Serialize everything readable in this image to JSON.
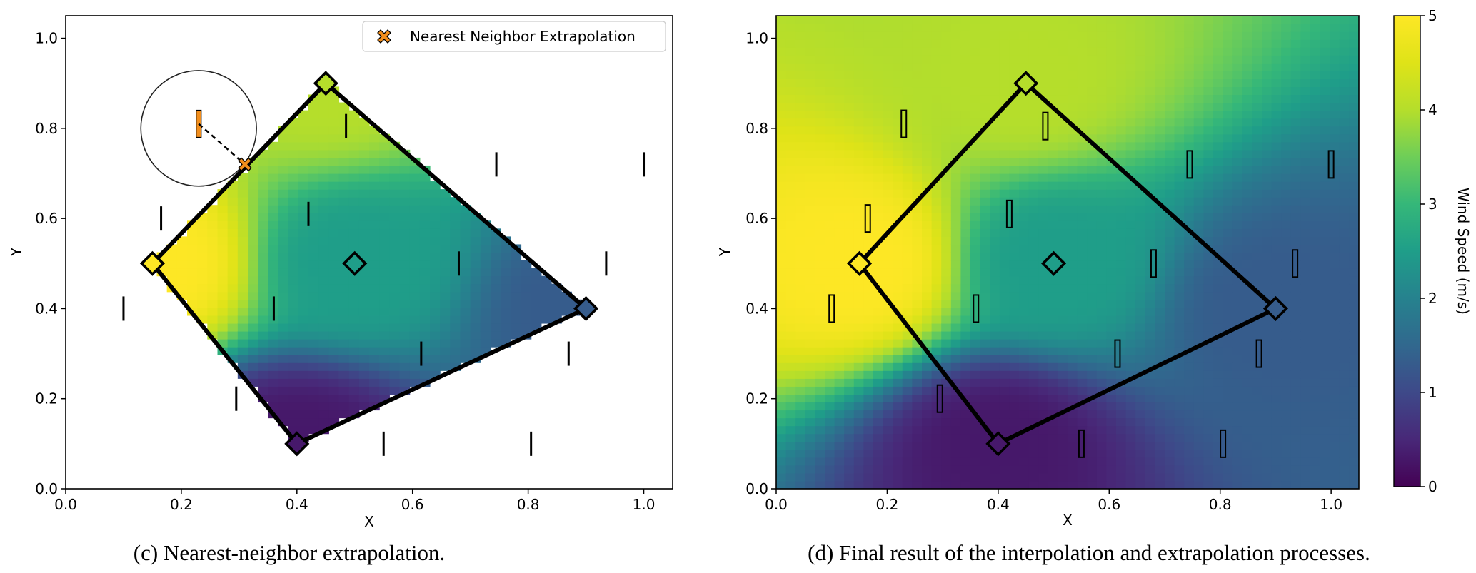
{
  "chart_data": [
    {
      "type": "heatmap",
      "caption": "(c) Nearest-neighbor extrapolation.",
      "xlabel": "X",
      "ylabel": "Y",
      "xlim": [
        0.0,
        1.05
      ],
      "ylim": [
        0.0,
        1.05
      ],
      "xticks": [
        "0.0",
        "0.2",
        "0.4",
        "0.6",
        "0.8",
        "1.0"
      ],
      "yticks": [
        "0.0",
        "0.2",
        "0.4",
        "0.6",
        "0.8",
        "1.0"
      ],
      "grid": false,
      "fill_region": "polygon",
      "polygon": [
        {
          "x": 0.15,
          "y": 0.5,
          "value": 5.0
        },
        {
          "x": 0.45,
          "y": 0.9,
          "value": 4.0
        },
        {
          "x": 0.9,
          "y": 0.4,
          "value": 1.3
        },
        {
          "x": 0.4,
          "y": 0.1,
          "value": 0.3
        }
      ],
      "interior_station": {
        "x": 0.5,
        "y": 0.5,
        "value": 2.5
      },
      "stations": [
        {
          "x": 0.23,
          "y": 0.81
        },
        {
          "x": 0.485,
          "y": 0.805
        },
        {
          "x": 0.745,
          "y": 0.72
        },
        {
          "x": 1.0,
          "y": 0.72
        },
        {
          "x": 0.165,
          "y": 0.6
        },
        {
          "x": 0.42,
          "y": 0.61
        },
        {
          "x": 0.68,
          "y": 0.5
        },
        {
          "x": 0.935,
          "y": 0.5
        },
        {
          "x": 0.1,
          "y": 0.4
        },
        {
          "x": 0.36,
          "y": 0.4
        },
        {
          "x": 0.615,
          "y": 0.3
        },
        {
          "x": 0.87,
          "y": 0.3
        },
        {
          "x": 0.295,
          "y": 0.2
        },
        {
          "x": 0.55,
          "y": 0.1
        },
        {
          "x": 0.805,
          "y": 0.1
        }
      ],
      "highlighted_station": {
        "x": 0.23,
        "y": 0.81
      },
      "search_circle": {
        "x": 0.23,
        "y": 0.8,
        "r": 0.1
      },
      "nearest_neighbor_point": {
        "x": 0.31,
        "y": 0.72
      },
      "legend": {
        "label": "Nearest Neighbor Extrapolation",
        "placement": "top-right",
        "color": "#f28e1c"
      }
    },
    {
      "type": "heatmap",
      "caption": "(d) Final result of the interpolation and extrapolation processes.",
      "xlabel": "X",
      "ylabel": "Y",
      "xlim": [
        0.0,
        1.05
      ],
      "ylim": [
        0.0,
        1.05
      ],
      "xticks": [
        "0.0",
        "0.2",
        "0.4",
        "0.6",
        "0.8",
        "1.0"
      ],
      "yticks": [
        "0.0",
        "0.2",
        "0.4",
        "0.6",
        "0.8",
        "1.0"
      ],
      "grid": false,
      "fill_region": "full",
      "polygon": [
        {
          "x": 0.15,
          "y": 0.5,
          "value": 5.0
        },
        {
          "x": 0.45,
          "y": 0.9,
          "value": 4.0
        },
        {
          "x": 0.9,
          "y": 0.4,
          "value": 1.3
        },
        {
          "x": 0.4,
          "y": 0.1,
          "value": 0.3
        }
      ],
      "interior_station": {
        "x": 0.5,
        "y": 0.5,
        "value": 2.5
      },
      "stations": [
        {
          "x": 0.23,
          "y": 0.81
        },
        {
          "x": 0.485,
          "y": 0.805
        },
        {
          "x": 0.745,
          "y": 0.72
        },
        {
          "x": 1.0,
          "y": 0.72
        },
        {
          "x": 0.165,
          "y": 0.6
        },
        {
          "x": 0.42,
          "y": 0.61
        },
        {
          "x": 0.68,
          "y": 0.5
        },
        {
          "x": 0.935,
          "y": 0.5
        },
        {
          "x": 0.1,
          "y": 0.4
        },
        {
          "x": 0.36,
          "y": 0.4
        },
        {
          "x": 0.615,
          "y": 0.3
        },
        {
          "x": 0.87,
          "y": 0.3
        },
        {
          "x": 0.295,
          "y": 0.2
        },
        {
          "x": 0.55,
          "y": 0.1
        },
        {
          "x": 0.805,
          "y": 0.1
        }
      ],
      "colorbar": {
        "label": "Wind Speed (m/s)",
        "range": [
          0,
          5
        ],
        "ticks": [
          "0",
          "1",
          "2",
          "3",
          "4",
          "5"
        ],
        "colormap": "viridis"
      }
    }
  ]
}
